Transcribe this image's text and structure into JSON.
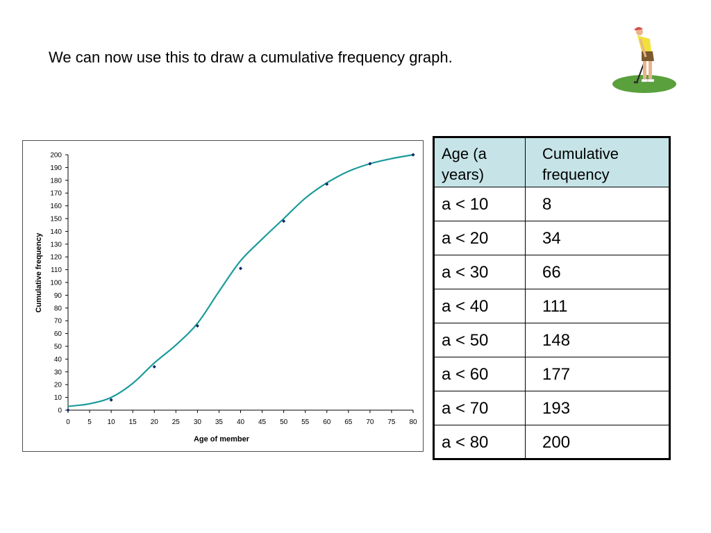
{
  "heading": "We can now use this to draw a cumulative frequency graph.",
  "colors": {
    "curve": "#1a9a9a",
    "marker": "#0d2b6b",
    "table_header_bg": "#c6e4e8",
    "grass": "#5aa03c"
  },
  "chart_data": {
    "type": "line",
    "xlabel": "Age of member",
    "ylabel": "Cumulative frequency",
    "xlim": [
      0,
      80
    ],
    "ylim": [
      0,
      200
    ],
    "xticks": [
      0,
      5,
      10,
      15,
      20,
      25,
      30,
      35,
      40,
      45,
      50,
      55,
      60,
      65,
      70,
      75,
      80
    ],
    "yticks": [
      0,
      10,
      20,
      30,
      40,
      50,
      60,
      70,
      80,
      90,
      100,
      110,
      120,
      130,
      140,
      150,
      160,
      170,
      180,
      190,
      200
    ],
    "grid": false,
    "series": [
      {
        "x": [
          0,
          10,
          20,
          30,
          40,
          50,
          60,
          70,
          80
        ],
        "values": [
          0,
          8,
          34,
          66,
          111,
          148,
          177,
          193,
          200
        ]
      }
    ],
    "curve": {
      "x": [
        0,
        5,
        10,
        15,
        20,
        25,
        30,
        35,
        40,
        45,
        50,
        55,
        60,
        65,
        70,
        75,
        80
      ],
      "values": [
        3,
        5,
        10,
        21,
        37,
        51,
        68,
        93,
        117,
        134,
        150,
        166,
        178,
        187,
        193,
        197,
        200
      ]
    }
  },
  "table": {
    "headers": [
      "Age (a years)",
      "Cumulative frequency"
    ],
    "rows": [
      {
        "age": "a < 10",
        "cf": "8"
      },
      {
        "age": "a < 20",
        "cf": "34"
      },
      {
        "age": "a < 30",
        "cf": "66"
      },
      {
        "age": "a < 40",
        "cf": "111"
      },
      {
        "age": "a < 50",
        "cf": "148"
      },
      {
        "age": "a < 60",
        "cf": "177"
      },
      {
        "age": "a < 70",
        "cf": "193"
      },
      {
        "age": "a < 80",
        "cf": "200"
      }
    ]
  },
  "decoration": {
    "golfer": "golfer-illustration"
  }
}
